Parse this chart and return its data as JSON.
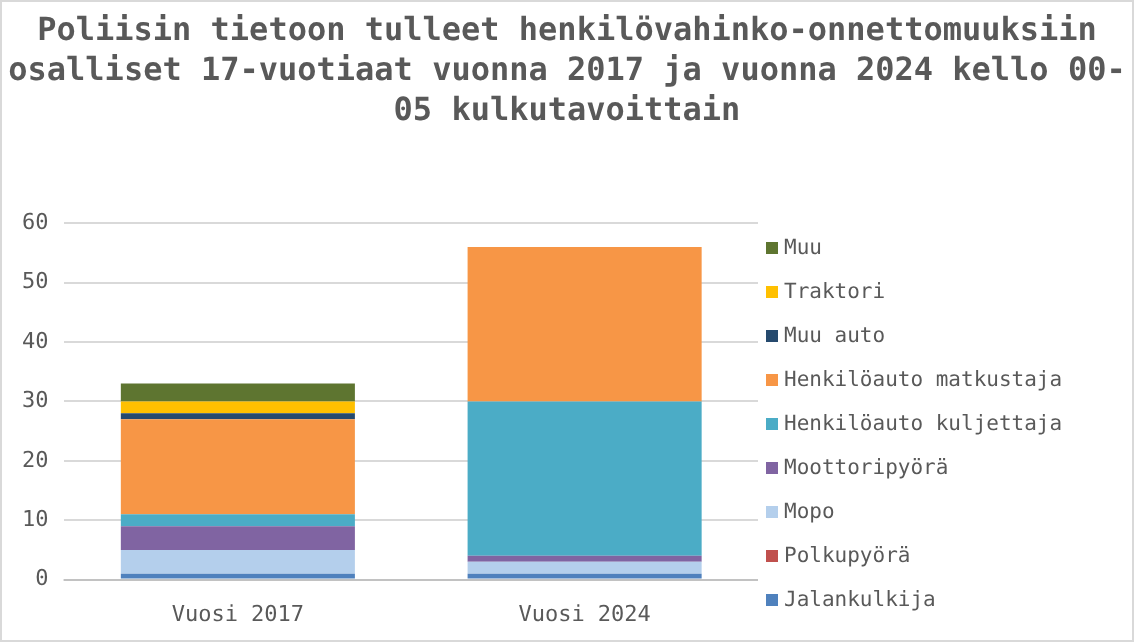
{
  "chart_data": {
    "type": "bar",
    "title": "Poliisin tietoon tulleet henkilövahinko-onnettomuuksiin osalliset 17-vuotiaat vuonna 2017 ja vuonna 2024 kello 00-05 kulkutavoittain",
    "categories": [
      "Vuosi 2017",
      "Vuosi 2024"
    ],
    "stacked": true,
    "series": [
      {
        "name": "Jalankulkija",
        "color": "#4f81bd",
        "values": [
          1,
          1
        ]
      },
      {
        "name": "Polkupyörä",
        "color": "#c0504d",
        "values": [
          0,
          0
        ]
      },
      {
        "name": "Mopo",
        "color": "#b4cfec",
        "values": [
          4,
          2
        ]
      },
      {
        "name": "Moottoripyörä",
        "color": "#8064a2",
        "values": [
          4,
          1
        ]
      },
      {
        "name": "Henkilöauto kuljettaja",
        "color": "#4bacc6",
        "values": [
          2,
          26
        ]
      },
      {
        "name": "Henkilöauto matkustaja",
        "color": "#f79646",
        "values": [
          16,
          26
        ]
      },
      {
        "name": "Muu auto",
        "color": "#264a6e",
        "values": [
          1,
          0
        ]
      },
      {
        "name": "Traktori",
        "color": "#ffc000",
        "values": [
          2,
          0
        ]
      },
      {
        "name": "Muu",
        "color": "#5e7530",
        "values": [
          3,
          0
        ]
      }
    ],
    "ylim": [
      0,
      60
    ],
    "yticks": [
      0,
      10,
      20,
      30,
      40,
      50,
      60
    ],
    "grid": "y",
    "legend": "right"
  }
}
